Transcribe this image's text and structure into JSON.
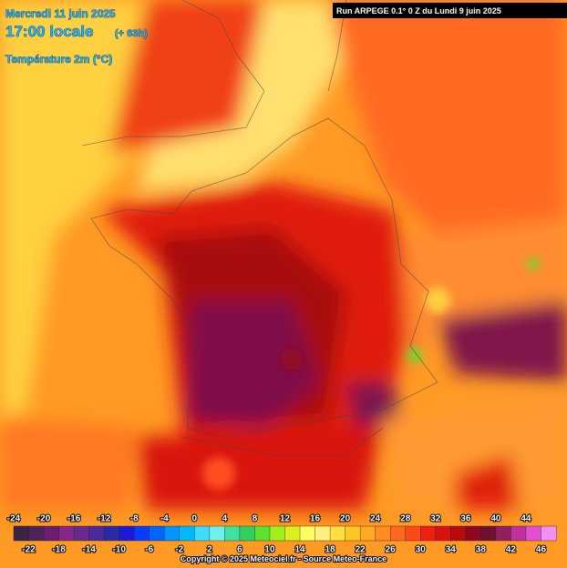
{
  "header": {
    "date": "Mercredi 11 juin 2025",
    "time": "17:00 locale",
    "lead": "(+ 63h)",
    "variable": "Température 2m (°C)"
  },
  "run": "Run ARPEGE 0.1° 0 Z du Lundi 9 juin 2025",
  "legend": {
    "values": [
      -24,
      -22,
      -20,
      -18,
      -16,
      -14,
      -12,
      -10,
      -8,
      -6,
      -4,
      -2,
      0,
      2,
      4,
      6,
      8,
      10,
      12,
      14,
      16,
      18,
      20,
      22,
      24,
      26,
      28,
      30,
      32,
      34,
      36,
      38,
      40,
      42,
      44,
      46
    ],
    "colors": [
      "#3a2446",
      "#4e2458",
      "#6a1e70",
      "#862688",
      "#6a2a8c",
      "#4a2a9a",
      "#2a2aa8",
      "#1a1ad8",
      "#0a3cff",
      "#0064ff",
      "#0096ff",
      "#00b8ff",
      "#40dcff",
      "#70f0e8",
      "#40e0a0",
      "#30d060",
      "#60e030",
      "#a0f020",
      "#d8f020",
      "#ffff60",
      "#fff080",
      "#ffe040",
      "#ffc820",
      "#ffaa20",
      "#ff8c20",
      "#ff6820",
      "#ff4818",
      "#f02010",
      "#d81010",
      "#b80a0a",
      "#900820",
      "#701030",
      "#902060",
      "#c030a0",
      "#e050d0",
      "#f090f0"
    ]
  },
  "credit": "Copyright © 2025 Meteociel.fr - Source Meteo-France"
}
